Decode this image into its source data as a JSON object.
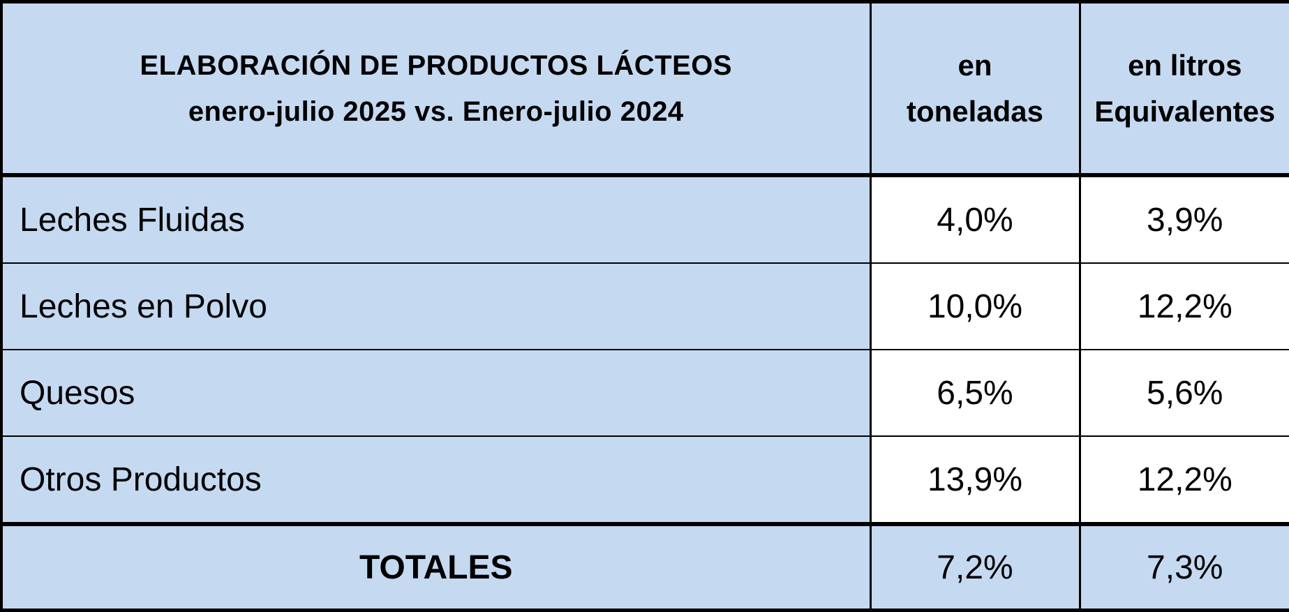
{
  "table": {
    "title_line1": "ELABORACIÓN DE PRODUCTOS LÁCTEOS",
    "title_line2": "enero-julio 2025 vs. Enero-julio 2024",
    "col2_line1": "en",
    "col2_line2": "toneladas",
    "col3_line1": "en litros",
    "col3_line2": "Equivalentes",
    "rows": [
      {
        "label": "Leches Fluidas",
        "toneladas": "4,0%",
        "litros": "3,9%"
      },
      {
        "label": "Leches en Polvo",
        "toneladas": "10,0%",
        "litros": "12,2%"
      },
      {
        "label": "Quesos",
        "toneladas": "6,5%",
        "litros": "5,6%"
      },
      {
        "label": "Otros Productos",
        "toneladas": "13,9%",
        "litros": "12,2%"
      }
    ],
    "totals": {
      "label": "TOTALES",
      "toneladas": "7,2%",
      "litros": "7,3%"
    }
  },
  "colors": {
    "header_fill": "#c5d9f1",
    "label_fill": "#c5d9f1",
    "value_fill": "#ffffff",
    "border": "#000000"
  }
}
